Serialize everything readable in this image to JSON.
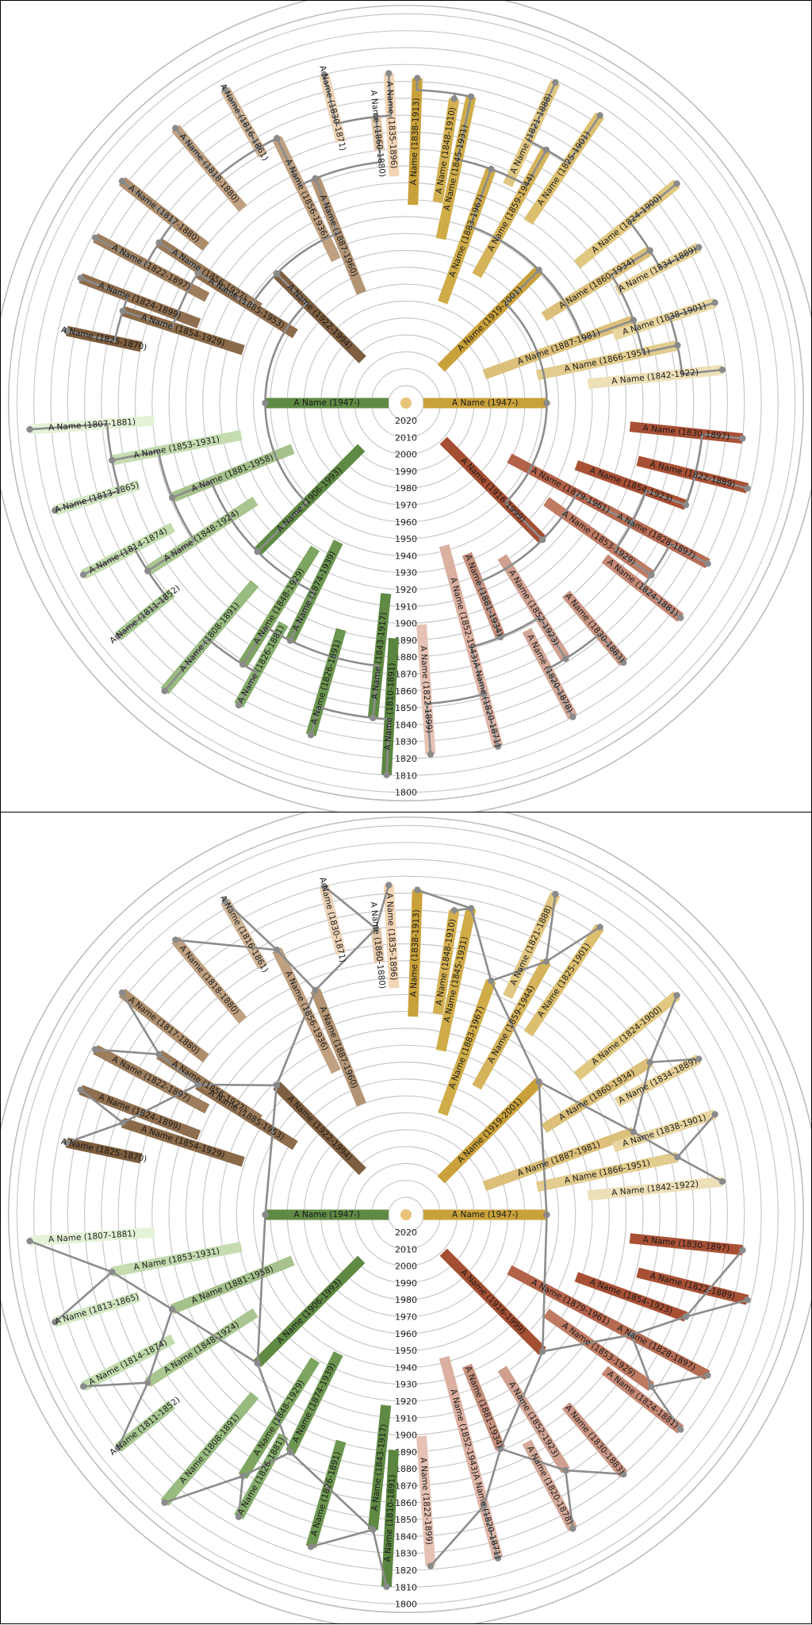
{
  "panels": [
    {
      "style": "arc"
    },
    {
      "style": "straight"
    }
  ],
  "year_labels": [
    "2020",
    "2010",
    "2000",
    "1990",
    "1980",
    "1970",
    "1960",
    "1950",
    "1940",
    "1930",
    "1920",
    "1910",
    "1900",
    "1890",
    "1880",
    "1870",
    "1860",
    "1850",
    "1840",
    "1830",
    "1820",
    "1810",
    "1800"
  ],
  "label_prefix": "A Name",
  "people": [
    {
      "id": "r1",
      "label": "A Name (1947-)",
      "birth": 1947,
      "death": null,
      "angle": 90,
      "color": "#c9a13a",
      "parent": null
    },
    {
      "id": "r2",
      "label": "A Name (1947-)",
      "birth": 1947,
      "death": null,
      "angle": 270,
      "color": "#5f8a44",
      "parent": null
    },
    {
      "id": "a1",
      "label": "A Name (1919-2001)",
      "birth": 1919,
      "death": 2001,
      "angle": 45,
      "color": "#c9a13a",
      "parent": "r1"
    },
    {
      "id": "a2",
      "label": "A Name (1887-1981)",
      "birth": 1887,
      "death": 1981,
      "angle": 70,
      "color": "#dcc07a",
      "parent": "a1"
    },
    {
      "id": "a3",
      "label": "A Name (1883-1967)",
      "birth": 1883,
      "death": 1967,
      "angle": 20,
      "color": "#cfac48",
      "parent": "a1"
    },
    {
      "id": "a4",
      "label": "A Name (1860-1934)",
      "birth": 1860,
      "death": 1934,
      "angle": 58,
      "color": "#dcc07a",
      "parent": "a2"
    },
    {
      "id": "a5",
      "label": "A Name (1866-1951)",
      "birth": 1866,
      "death": 1951,
      "angle": 78,
      "color": "#e2cc8e",
      "parent": "a2"
    },
    {
      "id": "a6",
      "label": "A Name (1859-1944)",
      "birth": 1859,
      "death": 1944,
      "angle": 29,
      "color": "#d5b35a",
      "parent": "a3"
    },
    {
      "id": "a7",
      "label": "A Name (1845-1931)",
      "birth": 1845,
      "death": 1931,
      "angle": 12,
      "color": "#cfac48",
      "parent": "a3"
    },
    {
      "id": "a8",
      "label": "A Name (1824-1900)",
      "birth": 1824,
      "death": 1900,
      "angle": 51,
      "color": "#e0c880",
      "parent": "a4"
    },
    {
      "id": "a9",
      "label": "A Name (1834-1889)",
      "birth": 1834,
      "death": 1889,
      "angle": 62,
      "color": "#e6d298",
      "parent": "a4"
    },
    {
      "id": "a10",
      "label": "A Name (1838-1901)",
      "birth": 1838,
      "death": 1901,
      "angle": 72,
      "color": "#e8d7a2",
      "parent": "a5"
    },
    {
      "id": "a11",
      "label": "A Name (1842-1922)",
      "birth": 1842,
      "death": 1922,
      "angle": 84,
      "color": "#ede0b8",
      "parent": "a5"
    },
    {
      "id": "a12",
      "label": "A Name (1825-1901)",
      "birth": 1825,
      "death": 1901,
      "angle": 34,
      "color": "#dcbf6e",
      "parent": "a6"
    },
    {
      "id": "a13",
      "label": "A Name (1821-1888)",
      "birth": 1821,
      "death": 1888,
      "angle": 25,
      "color": "#e0c680",
      "parent": "a6"
    },
    {
      "id": "a14",
      "label": "A Name (1848-1910)",
      "birth": 1848,
      "death": 1910,
      "angle": 9,
      "color": "#d3b050",
      "parent": "a7"
    },
    {
      "id": "a15",
      "label": "A Name (1838-1913)",
      "birth": 1838,
      "death": 1913,
      "angle": 2,
      "color": "#c9a13a",
      "parent": "a7"
    },
    {
      "id": "b1",
      "label": "A Name (1922-1994)",
      "birth": 1922,
      "death": 1994,
      "angle": 315,
      "color": "#7e5e3e",
      "parent": "r2"
    },
    {
      "id": "b2",
      "label": "A Name (1887-1960)",
      "birth": 1887,
      "death": 1960,
      "angle": 338,
      "color": "#b29474",
      "parent": "b1"
    },
    {
      "id": "b3",
      "label": "A Name (1885-1953)",
      "birth": 1885,
      "death": 1953,
      "angle": 302,
      "color": "#8d6c4c",
      "parent": "b1"
    },
    {
      "id": "b4",
      "label": "A Name (1856-1936)",
      "birth": 1856,
      "death": 1936,
      "angle": 334,
      "color": "#bfa080",
      "parent": "b2"
    },
    {
      "id": "b5",
      "label": "A Name (1860-1880)",
      "birth": 1860,
      "death": 1880,
      "angle": 354,
      "color": "#e2c7a8",
      "parent": "b2"
    },
    {
      "id": "b6",
      "label": "A Name (1856-1927)",
      "birth": 1856,
      "death": 1927,
      "angle": 303,
      "color": "#9a7a58",
      "parent": "b3"
    },
    {
      "id": "b7",
      "label": "A Name (1854-1929)",
      "birth": 1854,
      "death": 1929,
      "angle": 288,
      "color": "#8a6a48",
      "parent": "b3"
    },
    {
      "id": "b8",
      "label": "A Name (1816-1861)",
      "birth": 1816,
      "death": 1861,
      "angle": 330,
      "color": "#cdb294",
      "parent": "b4"
    },
    {
      "id": "b9",
      "label": "A Name (1818-1880)",
      "birth": 1818,
      "death": 1880,
      "angle": 320,
      "color": "#bfa080",
      "parent": "b4"
    },
    {
      "id": "b10",
      "label": "A Name (1835-1896)",
      "birth": 1835,
      "death": 1896,
      "angle": 357,
      "color": "#f2d5b5",
      "parent": "b5"
    },
    {
      "id": "b11",
      "label": "A Name (1830-1871)",
      "birth": 1830,
      "death": 1871,
      "angle": 346,
      "color": "#ecd3b8",
      "parent": "b5"
    },
    {
      "id": "b12",
      "label": "A Name (1817-1880)",
      "birth": 1817,
      "death": 1880,
      "angle": 308,
      "color": "#ad8d6b",
      "parent": "b6"
    },
    {
      "id": "b13",
      "label": "A Name (1822-1897)",
      "birth": 1822,
      "death": 1897,
      "angle": 298,
      "color": "#9d7d5c",
      "parent": "b6"
    },
    {
      "id": "b14",
      "label": "A Name (1824-1899)",
      "birth": 1824,
      "death": 1899,
      "angle": 291,
      "color": "#8e6e4e",
      "parent": "b7"
    },
    {
      "id": "b15",
      "label": "A Name (1825-1870)",
      "birth": 1825,
      "death": 1870,
      "angle": 282,
      "color": "#7d5d3d",
      "parent": "b7"
    },
    {
      "id": "c1",
      "label": "A Name (1916-1999)",
      "birth": 1916,
      "death": 1999,
      "angle": 135,
      "color": "#a44e32",
      "parent": "r1"
    },
    {
      "id": "c2",
      "label": "A Name (1879-1961)",
      "birth": 1879,
      "death": 1961,
      "angle": 118,
      "color": "#b3624a",
      "parent": "c1"
    },
    {
      "id": "c3",
      "label": "A Name (1881-1934)",
      "birth": 1881,
      "death": 1934,
      "angle": 158,
      "color": "#c48f7c",
      "parent": "c1"
    },
    {
      "id": "c4",
      "label": "A Name (1854-1923)",
      "birth": 1854,
      "death": 1923,
      "angle": 110,
      "color": "#a85035",
      "parent": "c2"
    },
    {
      "id": "c5",
      "label": "A Name (1853-1929)",
      "birth": 1853,
      "death": 1929,
      "angle": 125,
      "color": "#bf7a62",
      "parent": "c2"
    },
    {
      "id": "c6",
      "label": "A Name (1852-1923)",
      "birth": 1852,
      "death": 1923,
      "angle": 148,
      "color": "#cfa090",
      "parent": "c3"
    },
    {
      "id": "c7",
      "label": "A Name (1852-1943)",
      "birth": 1852,
      "death": 1943,
      "angle": 165,
      "color": "#dbb0a0",
      "parent": "c3"
    },
    {
      "id": "c8",
      "label": "A Name (1830-1897)",
      "birth": 1830,
      "death": 1897,
      "angle": 96,
      "color": "#a85035",
      "parent": "c4"
    },
    {
      "id": "c9",
      "label": "A Name (1822-1889)",
      "birth": 1822,
      "death": 1889,
      "angle": 104,
      "color": "#a85035",
      "parent": "c4"
    },
    {
      "id": "c10",
      "label": "A Name (1828-1897)",
      "birth": 1828,
      "death": 1897,
      "angle": 118,
      "color": "#b66b53",
      "parent": "c5"
    },
    {
      "id": "c11",
      "label": "A Name (1824-1881)",
      "birth": 1824,
      "death": 1881,
      "angle": 128,
      "color": "#c48773",
      "parent": "c5"
    },
    {
      "id": "c12",
      "label": "A Name (1830-1883)",
      "birth": 1830,
      "death": 1883,
      "angle": 140,
      "color": "#c99583",
      "parent": "c6"
    },
    {
      "id": "c13",
      "label": "A Name (1820-1878)",
      "birth": 1820,
      "death": 1878,
      "angle": 152,
      "color": "#d3a898",
      "parent": "c6"
    },
    {
      "id": "c14",
      "label": "A Name (1820-1871)",
      "birth": 1820,
      "death": 1871,
      "angle": 165,
      "color": "#ddb4a6",
      "parent": "c7"
    },
    {
      "id": "c15",
      "label": "A Name (1822-1899)",
      "birth": 1822,
      "death": 1899,
      "angle": 176,
      "color": "#e6c2b4",
      "parent": "c7"
    },
    {
      "id": "d1",
      "label": "A Name (1906-1993)",
      "birth": 1906,
      "death": 1993,
      "angle": 225,
      "color": "#5f8a44",
      "parent": "r2"
    },
    {
      "id": "d2",
      "label": "A Name (1881-1958)",
      "birth": 1881,
      "death": 1958,
      "angle": 248,
      "color": "#a5c28c",
      "parent": "d1"
    },
    {
      "id": "d3",
      "label": "A Name (1874-1939)",
      "birth": 1874,
      "death": 1939,
      "angle": 206,
      "color": "#6c9650",
      "parent": "d1"
    },
    {
      "id": "d4",
      "label": "A Name (1853-1931)",
      "birth": 1853,
      "death": 1931,
      "angle": 259,
      "color": "#c4dcb0",
      "parent": "d2"
    },
    {
      "id": "d5",
      "label": "A Name (1848-1924)",
      "birth": 1848,
      "death": 1924,
      "angle": 237,
      "color": "#a9c690",
      "parent": "d2"
    },
    {
      "id": "d6",
      "label": "A Name (1848-1929)",
      "birth": 1848,
      "death": 1929,
      "angle": 212,
      "color": "#7da560",
      "parent": "d3"
    },
    {
      "id": "d7",
      "label": "A Name (1843-1917)",
      "birth": 1843,
      "death": 1917,
      "angle": 186,
      "color": "#5f8a44",
      "parent": "d3"
    },
    {
      "id": "d8",
      "label": "A Name (1807-1881)",
      "birth": 1807,
      "death": 1881,
      "angle": 266,
      "color": "#e4f2d8",
      "parent": "d4"
    },
    {
      "id": "d9",
      "label": "A Name (1813-1865)",
      "birth": 1813,
      "death": 1865,
      "angle": 253,
      "color": "#d2e7c2",
      "parent": "d4"
    },
    {
      "id": "d10",
      "label": "A Name (1814-1874)",
      "birth": 1814,
      "death": 1874,
      "angle": 242,
      "color": "#c2dcae",
      "parent": "d5"
    },
    {
      "id": "d11",
      "label": "A Name (1811-1852)",
      "birth": 1811,
      "death": 1852,
      "angle": 231,
      "color": "#a8c892",
      "parent": "d5"
    },
    {
      "id": "d12",
      "label": "A Name (1808-1891)",
      "birth": 1808,
      "death": 1891,
      "angle": 220,
      "color": "#98bb80",
      "parent": "d6"
    },
    {
      "id": "d13",
      "label": "A Name (1826-1881)",
      "birth": 1826,
      "death": 1881,
      "angle": 209,
      "color": "#86ad6c",
      "parent": "d6"
    },
    {
      "id": "d14",
      "label": "A Name (1826-1891)",
      "birth": 1826,
      "death": 1891,
      "angle": 196,
      "color": "#6c9650",
      "parent": "d7"
    },
    {
      "id": "d15",
      "label": "A Name (1810-1891)",
      "birth": 1810,
      "death": 1891,
      "angle": 183,
      "color": "#5a8540",
      "parent": "d7"
    }
  ]
}
